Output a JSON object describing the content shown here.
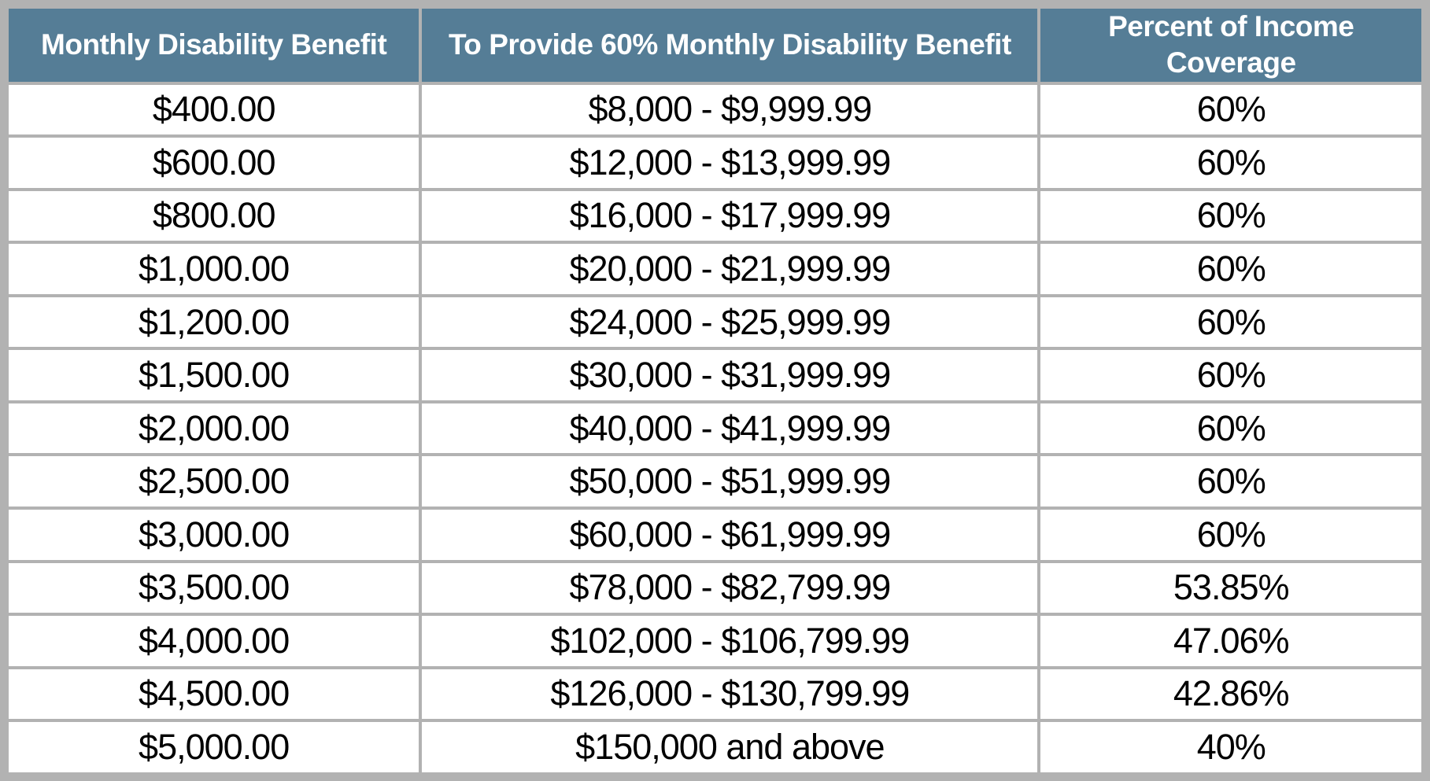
{
  "table": {
    "columns": [
      {
        "label": "Monthly Disability Benefit"
      },
      {
        "label": "To Provide 60% Monthly Disability Benefit"
      },
      {
        "label": "Percent of Income Coverage"
      }
    ],
    "rows": [
      [
        "$400.00",
        "$8,000 - $9,999.99",
        "60%"
      ],
      [
        "$600.00",
        "$12,000 - $13,999.99",
        "60%"
      ],
      [
        "$800.00",
        "$16,000 - $17,999.99",
        "60%"
      ],
      [
        "$1,000.00",
        "$20,000 - $21,999.99",
        "60%"
      ],
      [
        "$1,200.00",
        "$24,000 - $25,999.99",
        "60%"
      ],
      [
        "$1,500.00",
        "$30,000 - $31,999.99",
        "60%"
      ],
      [
        "$2,000.00",
        "$40,000 - $41,999.99",
        "60%"
      ],
      [
        "$2,500.00",
        "$50,000 - $51,999.99",
        "60%"
      ],
      [
        "$3,000.00",
        "$60,000 - $61,999.99",
        "60%"
      ],
      [
        "$3,500.00",
        "$78,000 - $82,799.99",
        "53.85%"
      ],
      [
        "$4,000.00",
        "$102,000 - $106,799.99",
        "47.06%"
      ],
      [
        "$4,500.00",
        "$126,000 - $130,799.99",
        "42.86%"
      ],
      [
        "$5,000.00",
        "$150,000 and above",
        "40%"
      ]
    ]
  },
  "colors": {
    "header_bg": "#557d96",
    "header_text": "#ffffff",
    "border": "#b2b2b2",
    "cell_bg": "#ffffff",
    "cell_text": "#000000"
  },
  "chart_data": {
    "type": "table",
    "title": "",
    "columns": [
      "Monthly Disability Benefit",
      "To Provide 60% Monthly Disability Benefit",
      "Percent of Income Coverage"
    ],
    "monthly_benefit_values": [
      400.0,
      600.0,
      800.0,
      1000.0,
      1200.0,
      1500.0,
      2000.0,
      2500.0,
      3000.0,
      3500.0,
      4000.0,
      4500.0,
      5000.0
    ],
    "income_ranges": [
      "$8,000 - $9,999.99",
      "$12,000 - $13,999.99",
      "$16,000 - $17,999.99",
      "$20,000 - $21,999.99",
      "$24,000 - $25,999.99",
      "$30,000 - $31,999.99",
      "$40,000 - $41,999.99",
      "$50,000 - $51,999.99",
      "$60,000 - $61,999.99",
      "$78,000 - $82,799.99",
      "$102,000 - $106,799.99",
      "$126,000 - $130,799.99",
      "$150,000 and above"
    ],
    "percent_of_income_coverage": [
      60,
      60,
      60,
      60,
      60,
      60,
      60,
      60,
      60,
      53.85,
      47.06,
      42.86,
      40
    ]
  }
}
